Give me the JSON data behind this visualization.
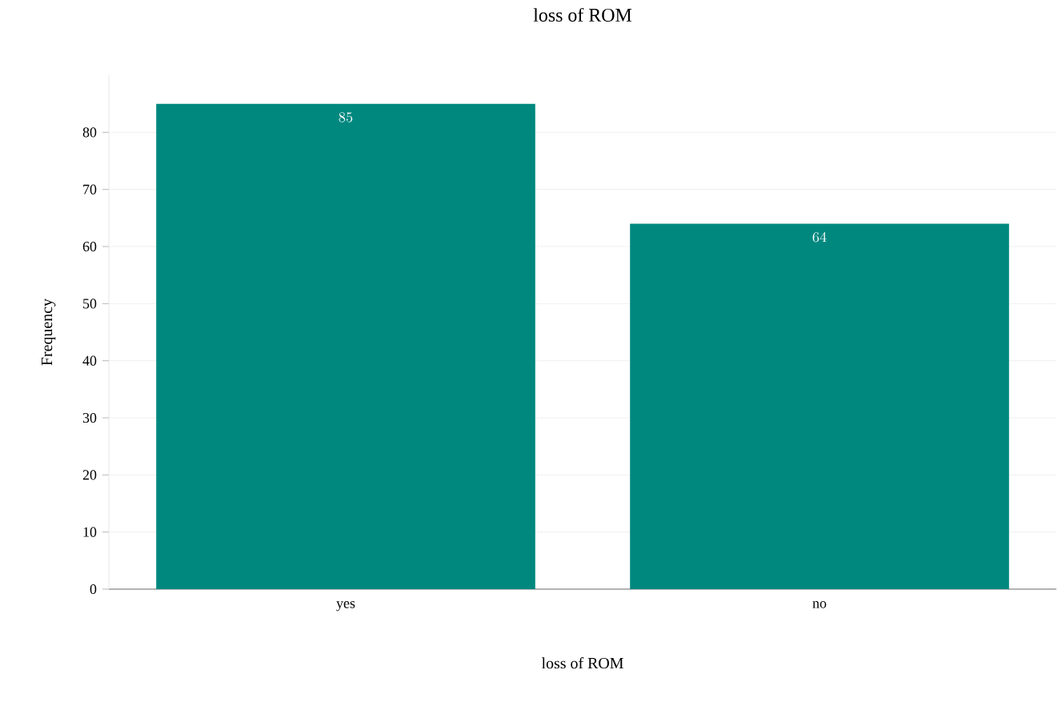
{
  "chart_data": {
    "type": "bar",
    "title": "loss of ROM",
    "xlabel": "loss of ROM",
    "ylabel": "Frequency",
    "categories": [
      "yes",
      "no"
    ],
    "values": [
      85,
      64
    ],
    "color": "#00887f",
    "ylim": [
      0,
      90
    ],
    "yticks": [
      0,
      10,
      20,
      30,
      40,
      50,
      60,
      70,
      80
    ],
    "grid": "y",
    "data_labels": true
  }
}
